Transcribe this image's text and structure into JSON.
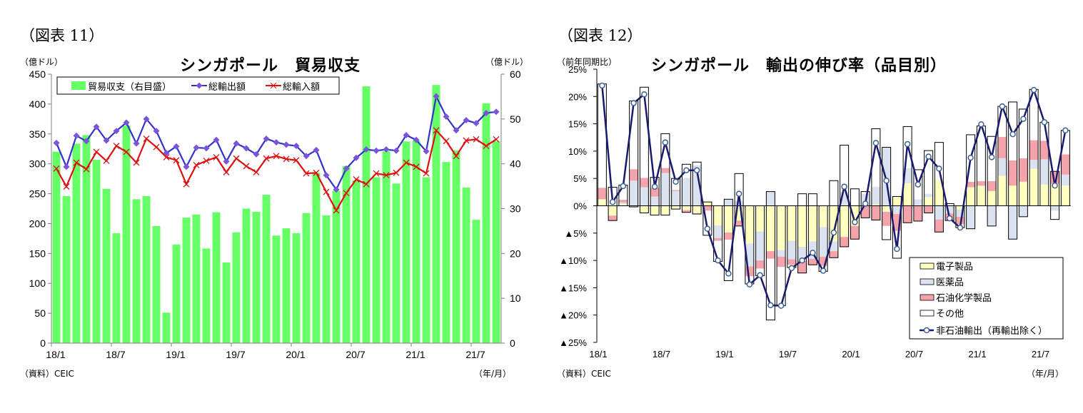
{
  "chart_data": [
    {
      "type": "bar+line",
      "figure_label": "（図表 11）",
      "title": "シンガポール　貿易収支",
      "ylabel_left": "（億ドル）",
      "ylabel_right": "（億ドル）",
      "xlabel": "（年/月）",
      "source": "（資料）CEIC",
      "ylim_left": [
        0,
        450
      ],
      "yticks_left": [
        "0",
        "50",
        "100",
        "150",
        "200",
        "250",
        "300",
        "350",
        "400",
        "450"
      ],
      "ylim_right": [
        0,
        60
      ],
      "yticks_right": [
        "0",
        "10",
        "20",
        "30",
        "40",
        "50",
        "60"
      ],
      "xtick_labels": [
        "18/1",
        "18/7",
        "19/1",
        "19/7",
        "20/1",
        "20/7",
        "21/1",
        "21/7"
      ],
      "legend_position": "top",
      "grid": false,
      "colors": {
        "balance": "#66ff66",
        "exports": "#3333cc",
        "exports_marker": "#7a55d8",
        "imports": "#dd1111"
      },
      "series": [
        {
          "name": "貿易収支（右目盛）",
          "axis": "right",
          "kind": "bar",
          "values": [
            42.7,
            32.8,
            44.5,
            46.4,
            40.9,
            34.4,
            24.5,
            48.5,
            32.1,
            32.8,
            26.1,
            6.8,
            22.0,
            28.0,
            28.7,
            21.1,
            29.2,
            18.0,
            24.7,
            30.0,
            29.3,
            33.1,
            24.0,
            25.6,
            24.5,
            29.0,
            38.0,
            28.5,
            34.0,
            39.5,
            36.3,
            57.3,
            37.0,
            42.8,
            35.6,
            45.0,
            45.2,
            37.0,
            57.6,
            40.4,
            43.0,
            34.7,
            27.5,
            53.5,
            45.0
          ]
        },
        {
          "name": "総輸出額",
          "axis": "left",
          "kind": "line",
          "values": [
            335,
            295,
            347,
            338,
            362,
            339,
            355,
            369,
            334,
            375,
            355,
            318,
            329,
            295,
            327,
            326,
            340,
            304,
            334,
            326,
            316,
            342,
            336,
            332,
            330,
            313,
            323,
            281,
            257,
            292,
            310,
            324,
            322,
            324,
            322,
            348,
            340,
            321,
            413,
            379,
            356,
            373,
            368,
            385,
            387
          ]
        },
        {
          "name": "総輸入額",
          "axis": "left",
          "kind": "line",
          "values": [
            292,
            262,
            302,
            291,
            320,
            305,
            330,
            320,
            302,
            342,
            328,
            311,
            306,
            266,
            298,
            305,
            311,
            286,
            309,
            296,
            286,
            309,
            313,
            308,
            306,
            284,
            285,
            253,
            222,
            251,
            274,
            266,
            284,
            281,
            285,
            302,
            295,
            284,
            356,
            338,
            313,
            339,
            341,
            330,
            341
          ]
        }
      ]
    },
    {
      "type": "stacked-bar+line",
      "figure_label": "（図表 12）",
      "title": "シンガポール　輸出の伸び率（品目別）",
      "ylabel": "（前年同期比）",
      "xlabel": "（年/月）",
      "source": "（資料）CEIC",
      "ylim": [
        -25,
        25
      ],
      "yticks": [
        "▲25%",
        "▲20%",
        "▲15%",
        "▲10%",
        "▲5%",
        "0%",
        "5%",
        "10%",
        "15%",
        "20%",
        "25%"
      ],
      "xtick_labels": [
        "18/1",
        "18/7",
        "19/1",
        "19/7",
        "20/1",
        "20/7",
        "21/1",
        "21/7"
      ],
      "legend_position": "bottom-right",
      "grid": false,
      "colors": {
        "electronics": "#ffffc0",
        "pharma": "#dce3f0",
        "petrochem": "#f5a3aa",
        "other": "#ffffff",
        "line": "#1a1a6e",
        "marker_stroke": "#3d5f8f"
      },
      "series": [
        {
          "name": "電子製品",
          "kind": "bar",
          "values": [
            1.2,
            -1.8,
            0.3,
            -0.2,
            -1.3,
            -1.7,
            -1.7,
            -0.6,
            -0.8,
            -1.4,
            0.7,
            -3.6,
            -4.9,
            -2.7,
            -6.9,
            -4.7,
            -8.3,
            -8.1,
            -6.4,
            -7.5,
            -6.5,
            -3.9,
            -6.5,
            -5.7,
            -3.7,
            0,
            0.2,
            -1.1,
            1.7,
            4.1,
            0.1,
            1.6,
            4.7,
            0,
            -0.7,
            3.4,
            3.6,
            2.7,
            5.5,
            3.7,
            4.4,
            6.8,
            3.9,
            4.0,
            3.7
          ]
        },
        {
          "name": "医薬品",
          "kind": "bar",
          "values": [
            0,
            0,
            0.3,
            4.6,
            3.4,
            1.7,
            6.0,
            2.7,
            5.1,
            7.4,
            0,
            -2.3,
            1.2,
            0.9,
            -4.2,
            -5.3,
            2.6,
            -1.2,
            -3.4,
            -2.6,
            -3.2,
            -5.4,
            -1.8,
            2.5,
            0,
            2.2,
            3.3,
            10.7,
            -1.5,
            2.8,
            1.1,
            0.6,
            -2.5,
            -1.4,
            -1.3,
            -4.2,
            0.1,
            -3.7,
            3.2,
            -6.1,
            -2.0,
            1.6,
            4.6,
            -0.9,
            2.0
          ]
        },
        {
          "name": "石油化学製品",
          "kind": "bar",
          "values": [
            2.1,
            -0.9,
            0.5,
            2.1,
            1.7,
            1.6,
            0.9,
            0.2,
            -0.4,
            -0.1,
            -0.9,
            -0.5,
            -1.3,
            -1.0,
            -1.8,
            -1.5,
            -1.4,
            -1.9,
            -1.0,
            -2.2,
            -1.1,
            -1.7,
            -1.2,
            -1.8,
            -2.4,
            -2.2,
            -2.6,
            -2.6,
            -3.1,
            -3.1,
            -2.8,
            -1.3,
            -2.3,
            -1.3,
            -1.4,
            1.0,
            0.8,
            1.8,
            3.9,
            4.6,
            4.3,
            3.6,
            3.4,
            2.3,
            3.7
          ]
        },
        {
          "name": "その他",
          "kind": "bar",
          "values": [
            19.0,
            3.4,
            2.7,
            12.5,
            16.6,
            1.9,
            6.3,
            2.1,
            2.5,
            0.6,
            -4.5,
            -3.8,
            -7.5,
            5.0,
            -1.4,
            -1.3,
            -11.2,
            -7.1,
            -0.5,
            2.2,
            2.2,
            -1.0,
            4.6,
            8.6,
            3.1,
            0.4,
            10.6,
            -2.5,
            -5.0,
            7.6,
            5.4,
            7.9,
            6.9,
            0.4,
            -0.6,
            8.6,
            10.1,
            8.2,
            5.6,
            10.7,
            9.0,
            9.3,
            3.4,
            -1.6,
            4.4
          ]
        },
        {
          "name": "非石油輸出（再輸出除く）",
          "kind": "line",
          "values": [
            22.0,
            0.7,
            3.6,
            18.8,
            20.4,
            3.5,
            11.6,
            4.4,
            6.5,
            6.5,
            -4.2,
            -10.0,
            -12.4,
            2.2,
            -14.4,
            -12.7,
            -18.2,
            -18.3,
            -11.4,
            -10.0,
            -8.6,
            -11.9,
            -4.9,
            3.5,
            -3.0,
            0.4,
            11.5,
            4.6,
            -7.9,
            11.3,
            3.9,
            9.0,
            6.8,
            -2.3,
            -4.0,
            8.8,
            14.9,
            8.9,
            18.2,
            13.1,
            15.9,
            21.2,
            15.3,
            3.7,
            13.8
          ]
        }
      ]
    }
  ]
}
